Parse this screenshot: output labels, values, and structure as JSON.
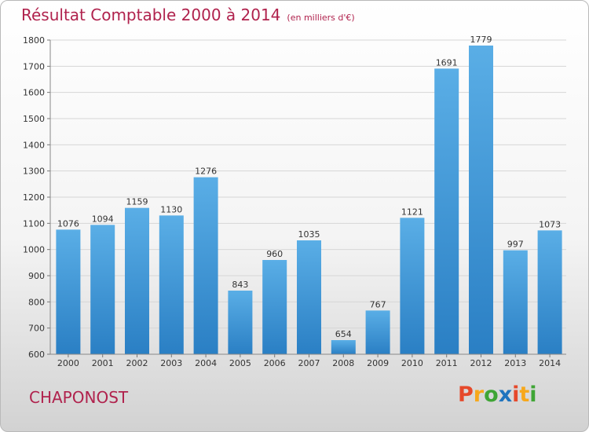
{
  "chart_data": {
    "type": "bar",
    "title": "Résultat Comptable 2000 à 2014",
    "subtitle": "(en milliers d'€)",
    "categories": [
      "2000",
      "2001",
      "2002",
      "2003",
      "2004",
      "2005",
      "2006",
      "2007",
      "2008",
      "2009",
      "2010",
      "2011",
      "2012",
      "2013",
      "2014"
    ],
    "values": [
      1076,
      1094,
      1159,
      1130,
      1276,
      843,
      960,
      1035,
      654,
      767,
      1121,
      1691,
      1779,
      997,
      1073
    ],
    "ylim": [
      600,
      1800
    ],
    "yticks": [
      600,
      700,
      800,
      900,
      1000,
      1100,
      1200,
      1300,
      1400,
      1500,
      1600,
      1700,
      1800
    ],
    "grid": true,
    "bar_color": "#3c95d9"
  },
  "location_label": "CHAPONOST",
  "brand": {
    "letters": [
      "P",
      "r",
      "o",
      "x",
      "i",
      "t",
      "i"
    ],
    "colors": [
      "#e6492b",
      "#f7a81b",
      "#3fa535",
      "#1e73be",
      "#e6492b",
      "#f7a81b",
      "#3fa535"
    ]
  }
}
